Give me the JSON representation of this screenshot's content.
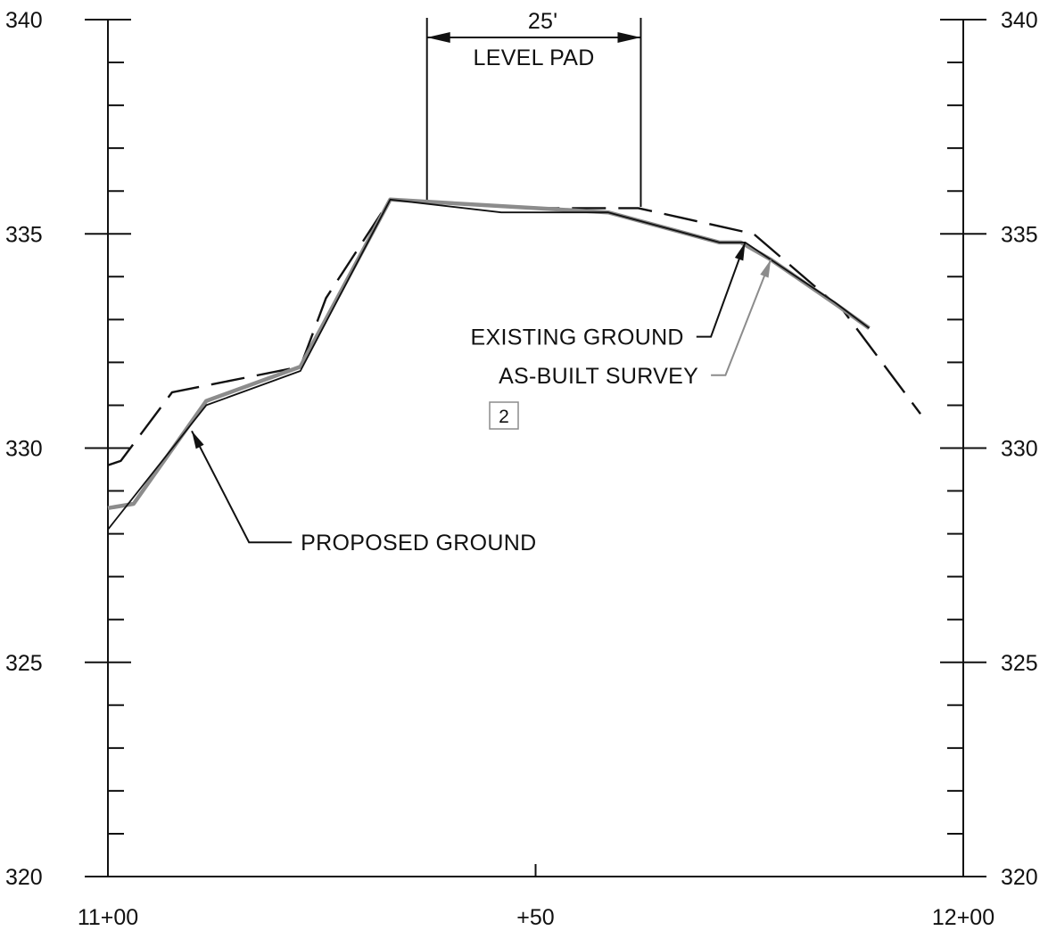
{
  "chart_data": {
    "type": "line",
    "x_axis": {
      "range": [
        1100,
        1200
      ],
      "tick_labels": [
        {
          "x": 1100,
          "label": "11+00"
        },
        {
          "x": 1150,
          "label": "+50"
        },
        {
          "x": 1200,
          "label": "12+00"
        }
      ]
    },
    "y_axis": {
      "range": [
        320,
        340
      ],
      "left_tick_labels": [
        {
          "y": 340,
          "label": "340"
        },
        {
          "y": 335,
          "label": "335"
        },
        {
          "y": 330,
          "label": "330"
        },
        {
          "y": 325,
          "label": "325"
        },
        {
          "y": 320,
          "label": "320"
        }
      ],
      "right_tick_labels": [
        {
          "y": 340,
          "label": "340"
        },
        {
          "y": 335,
          "label": "335"
        },
        {
          "y": 330,
          "label": "330"
        },
        {
          "y": 325,
          "label": "325"
        },
        {
          "y": 320,
          "label": "320"
        }
      ],
      "minor_step": 1
    },
    "series": [
      {
        "name": "EXISTING GROUND",
        "style": "dashed",
        "color": "#111111",
        "points": [
          [
            1100,
            329.6
          ],
          [
            1101.5,
            329.7
          ],
          [
            1107.5,
            331.3
          ],
          [
            1122.5,
            331.9
          ],
          [
            1125.5,
            333.5
          ],
          [
            1133,
            335.8
          ],
          [
            1150,
            335.6
          ],
          [
            1162,
            335.6
          ],
          [
            1175.5,
            335.0
          ],
          [
            1186,
            333.2
          ],
          [
            1195,
            330.8
          ]
        ]
      },
      {
        "name": "PROPOSED GROUND",
        "style": "solid",
        "color": "#111111",
        "points": [
          [
            1100,
            328.1
          ],
          [
            1111.5,
            331.0
          ],
          [
            1122.5,
            331.8
          ],
          [
            1133,
            335.8
          ],
          [
            1146,
            335.5
          ],
          [
            1158.5,
            335.5
          ],
          [
            1171.5,
            334.8
          ],
          [
            1174.5,
            334.8
          ],
          [
            1177.5,
            334.4
          ],
          [
            1185,
            333.4
          ],
          [
            1189,
            332.8
          ]
        ]
      },
      {
        "name": "AS-BUILT SURVEY",
        "style": "solid",
        "color": "#8c8c8c",
        "points": [
          [
            1100,
            328.6
          ],
          [
            1103,
            328.7
          ],
          [
            1111.5,
            331.1
          ],
          [
            1122.5,
            331.9
          ],
          [
            1133,
            335.8
          ],
          [
            1150,
            335.6
          ],
          [
            1158.5,
            335.5
          ],
          [
            1171.5,
            334.8
          ],
          [
            1174,
            334.8
          ],
          [
            1177.5,
            334.4
          ],
          [
            1185.5,
            333.3
          ],
          [
            1189,
            332.8
          ]
        ]
      }
    ],
    "dimension": {
      "x_start": 1137.3,
      "x_end": 1162.3,
      "label_value": "25'",
      "label_text": "LEVEL PAD"
    },
    "annotations": [
      {
        "id": "existing",
        "text": "EXISTING GROUND",
        "color": "#111111",
        "leader": [
          [
            1168.8,
            332.6
          ],
          [
            1170.5,
            332.6
          ],
          [
            1174.5,
            334.8
          ]
        ]
      },
      {
        "id": "asbuilt",
        "text": "AS-BUILT SURVEY",
        "color": "#8c8c8c",
        "leader": [
          [
            1170.5,
            331.7
          ],
          [
            1172.2,
            331.7
          ],
          [
            1177.5,
            334.4
          ]
        ]
      },
      {
        "id": "proposed",
        "text": "PROPOSED GROUND",
        "color": "#111111",
        "leader": [
          [
            1121.5,
            327.8
          ],
          [
            1116.5,
            327.8
          ],
          [
            1109.8,
            330.4
          ]
        ]
      }
    ],
    "note_box": {
      "text": "2"
    }
  }
}
